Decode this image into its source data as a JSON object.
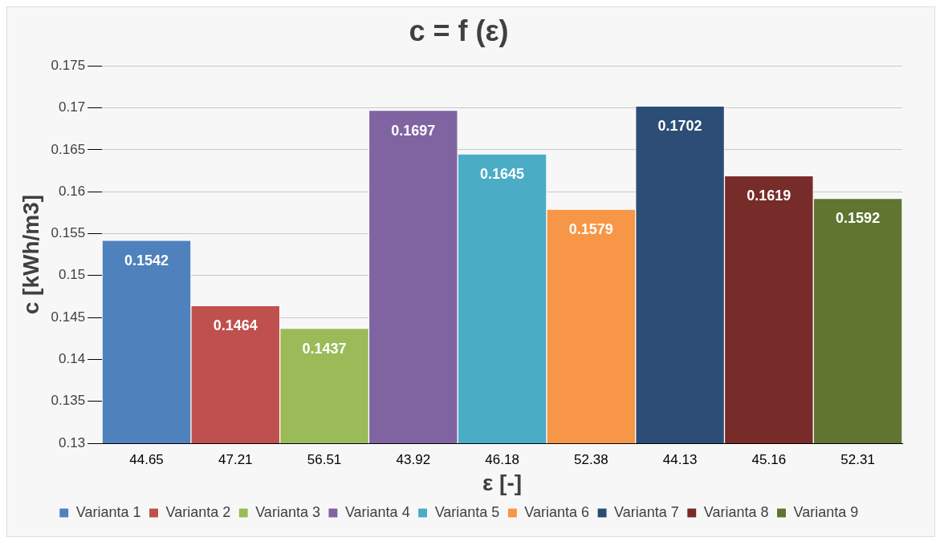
{
  "chart_data": {
    "type": "bar",
    "title": "c = f (ε)",
    "xlabel": "ε [-]",
    "ylabel": "c [kWh/m3]",
    "categories": [
      "44.65",
      "47.21",
      "56.51",
      "43.92",
      "46.18",
      "52.38",
      "44.13",
      "45.16",
      "52.31"
    ],
    "series": [
      {
        "name": "Varianta 1",
        "color": "#4f81bd",
        "values": [
          0.1542,
          null,
          null,
          null,
          null,
          null,
          null,
          null,
          null
        ]
      },
      {
        "name": "Varianta 2",
        "color": "#c0504d",
        "values": [
          null,
          0.1464,
          null,
          null,
          null,
          null,
          null,
          null,
          null
        ]
      },
      {
        "name": "Varianta 3",
        "color": "#9bbb59",
        "values": [
          null,
          null,
          0.1437,
          null,
          null,
          null,
          null,
          null,
          null
        ]
      },
      {
        "name": "Varianta 4",
        "color": "#8064a2",
        "values": [
          null,
          null,
          null,
          0.1697,
          null,
          null,
          null,
          null,
          null
        ]
      },
      {
        "name": "Varianta 5",
        "color": "#4bacc6",
        "values": [
          null,
          null,
          null,
          null,
          0.1645,
          null,
          null,
          null,
          null
        ]
      },
      {
        "name": "Varianta 6",
        "color": "#f79646",
        "values": [
          null,
          null,
          null,
          null,
          null,
          0.1579,
          null,
          null,
          null
        ]
      },
      {
        "name": "Varianta 7",
        "color": "#2c4d75",
        "values": [
          null,
          null,
          null,
          null,
          null,
          null,
          0.1702,
          null,
          null
        ]
      },
      {
        "name": "Varianta 8",
        "color": "#772c2a",
        "values": [
          null,
          null,
          null,
          null,
          null,
          null,
          null,
          0.1619,
          null
        ]
      },
      {
        "name": "Varianta 9",
        "color": "#5f7530",
        "values": [
          null,
          null,
          null,
          null,
          null,
          null,
          null,
          null,
          0.1592
        ]
      }
    ],
    "ylim": [
      0.13,
      0.175
    ],
    "yticks": [
      0.13,
      0.135,
      0.14,
      0.145,
      0.15,
      0.155,
      0.16,
      0.165,
      0.17,
      0.175
    ],
    "grid": "y",
    "legend": "bottom",
    "data_labels": true
  }
}
